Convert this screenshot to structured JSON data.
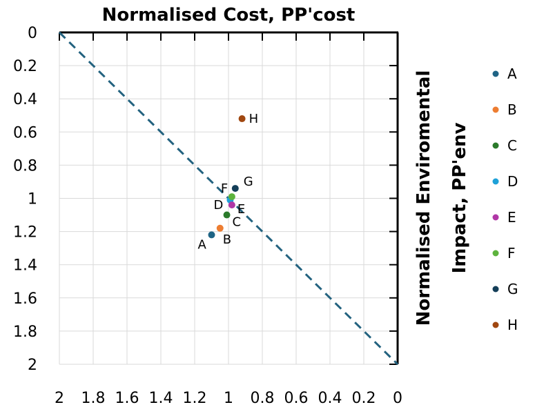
{
  "chart_data": {
    "type": "scatter",
    "title": "Normalised Cost, PP'cost",
    "xlabel": "Normalised Cost, PP'cost",
    "ylabel_line1": "Normalised Enviromental",
    "ylabel_line2": "Impact, PP'env",
    "xlim": [
      2,
      0
    ],
    "ylim": [
      0,
      2
    ],
    "x_reversed": true,
    "y_reversed": true,
    "grid": true,
    "x_ticks": [
      "2",
      "1.8",
      "1.6",
      "1.4",
      "1.2",
      "1",
      "0.8",
      "0.6",
      "0.4",
      "0.2",
      "0"
    ],
    "y_ticks": [
      "0",
      "0.2",
      "0.4",
      "0.6",
      "0.8",
      "1",
      "1.2",
      "1.4",
      "1.6",
      "1.8",
      "2"
    ],
    "reference_line": {
      "from": [
        2,
        0
      ],
      "to": [
        0,
        2
      ],
      "style": "dashed",
      "color": "#23627f"
    },
    "legend_position": "right",
    "series": [
      {
        "name": "A",
        "color": "#1f6485",
        "x": 1.1,
        "y": 1.22
      },
      {
        "name": "B",
        "color": "#ed7d31",
        "x": 1.05,
        "y": 1.18
      },
      {
        "name": "C",
        "color": "#2a7a2a",
        "x": 1.01,
        "y": 1.1
      },
      {
        "name": "D",
        "color": "#1ea1d8",
        "x": 0.99,
        "y": 1.01
      },
      {
        "name": "E",
        "color": "#b037a6",
        "x": 0.98,
        "y": 1.04
      },
      {
        "name": "F",
        "color": "#5db33d",
        "x": 0.98,
        "y": 0.99
      },
      {
        "name": "G",
        "color": "#143e58",
        "x": 0.96,
        "y": 0.94
      },
      {
        "name": "H",
        "color": "#a04710",
        "x": 0.92,
        "y": 0.52
      }
    ]
  }
}
